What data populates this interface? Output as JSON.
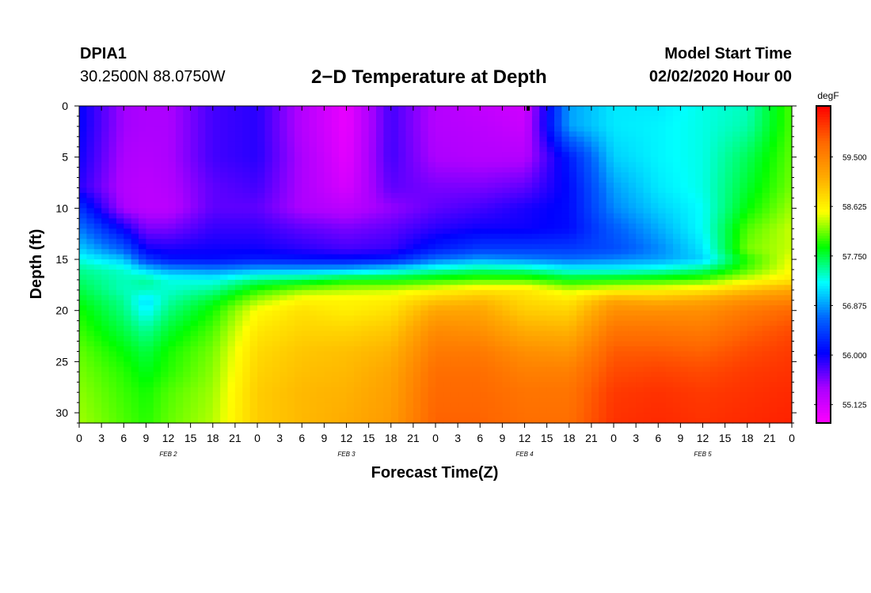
{
  "header": {
    "station": "DPIA1",
    "coords": "30.2500N 88.0750W",
    "title": "2−D Temperature at Depth",
    "start_title": "Model Start Time",
    "start_time": "02/02/2020 Hour 00"
  },
  "chart_data": {
    "type": "heatmap",
    "title": "2−D Temperature at Depth",
    "xlabel": "Forecast Time(Z)",
    "ylabel": "Depth (ft)",
    "x_hours_range": [
      0,
      96
    ],
    "ylim": [
      0,
      31
    ],
    "x_tick_labels": [
      "0",
      "3",
      "6",
      "9",
      "12",
      "15",
      "18",
      "21",
      "0",
      "3",
      "6",
      "9",
      "12",
      "15",
      "18",
      "21",
      "0",
      "3",
      "6",
      "9",
      "12",
      "15",
      "18",
      "21",
      "0",
      "3",
      "6",
      "9",
      "12",
      "15",
      "18",
      "21",
      "0"
    ],
    "y_ticks": [
      0,
      5,
      10,
      15,
      20,
      25,
      30
    ],
    "date_labels": [
      {
        "label": "FEB 2",
        "hour": 12
      },
      {
        "label": "FEB 3",
        "hour": 36
      },
      {
        "label": "FEB 4",
        "hour": 60
      },
      {
        "label": "FEB 5",
        "hour": 84
      }
    ],
    "colorbar": {
      "units": "degF",
      "range": [
        54.8,
        60.4
      ],
      "ticks": [
        55.125,
        56.0,
        56.875,
        57.75,
        58.625,
        59.5
      ],
      "tick_labels": [
        "55.125",
        "56.000",
        "56.875",
        "57.750",
        "58.625",
        "59.500"
      ],
      "colors": [
        "#ff00ff",
        "#aa00ff",
        "#0000ff",
        "#0066ff",
        "#00ffff",
        "#00ff00",
        "#ffff00",
        "#ffaa00",
        "#ff6600",
        "#ff0000"
      ]
    },
    "grid_depths_ft": [
      0,
      2,
      5,
      8,
      10,
      12,
      14,
      15,
      16,
      17,
      18,
      19,
      20,
      22,
      24,
      26,
      28,
      31
    ],
    "grid_hours": [
      0,
      6,
      9,
      12,
      18,
      24,
      30,
      36,
      42,
      48,
      54,
      60,
      66,
      72,
      78,
      84,
      90,
      96
    ],
    "temperature_degF": [
      [
        56.05,
        55.45,
        55.4,
        55.4,
        55.8,
        55.9,
        55.35,
        54.95,
        55.8,
        55.35,
        55.25,
        55.15,
        56.9,
        57.2,
        57.2,
        57.35,
        57.45,
        58.1
      ],
      [
        56.05,
        55.45,
        55.4,
        55.4,
        55.8,
        55.9,
        55.35,
        54.95,
        55.8,
        55.35,
        55.3,
        55.2,
        56.9,
        57.2,
        57.25,
        57.35,
        57.5,
        58.1
      ],
      [
        56.0,
        55.4,
        55.35,
        55.4,
        55.8,
        55.9,
        55.4,
        55.0,
        55.8,
        55.4,
        55.35,
        55.35,
        56.2,
        57.1,
        57.25,
        57.35,
        57.7,
        58.15
      ],
      [
        55.9,
        55.35,
        55.3,
        55.35,
        55.7,
        55.8,
        55.4,
        55.1,
        55.7,
        55.6,
        55.6,
        55.7,
        56.1,
        56.9,
        57.2,
        57.35,
        57.8,
        58.2
      ],
      [
        56.35,
        55.4,
        55.3,
        55.3,
        55.7,
        55.7,
        55.4,
        55.3,
        55.5,
        55.7,
        55.8,
        55.95,
        56.1,
        56.8,
        57.1,
        57.3,
        57.9,
        58.3
      ],
      [
        56.75,
        56.0,
        55.6,
        55.6,
        55.85,
        55.85,
        55.7,
        55.6,
        55.7,
        55.9,
        56.0,
        56.0,
        56.1,
        56.6,
        56.95,
        57.3,
        58.1,
        58.4
      ],
      [
        57.1,
        56.6,
        56.0,
        55.95,
        56.0,
        56.0,
        55.9,
        55.8,
        55.85,
        56.2,
        56.4,
        56.4,
        56.4,
        56.5,
        56.8,
        57.2,
        58.2,
        58.4
      ],
      [
        57.35,
        57.05,
        56.4,
        56.15,
        56.1,
        56.2,
        56.15,
        56.1,
        56.2,
        56.7,
        56.9,
        56.8,
        56.7,
        56.8,
        56.9,
        57.1,
        58.0,
        58.5
      ],
      [
        57.55,
        57.4,
        57.1,
        56.9,
        56.8,
        56.95,
        56.95,
        57.0,
        57.2,
        57.45,
        57.6,
        57.55,
        57.3,
        57.3,
        57.4,
        57.6,
        58.1,
        58.55
      ],
      [
        57.65,
        57.45,
        57.55,
        57.35,
        57.3,
        57.6,
        57.7,
        57.9,
        57.9,
        58.0,
        58.1,
        58.1,
        57.9,
        57.95,
        58.0,
        58.1,
        58.45,
        58.7
      ],
      [
        57.75,
        57.45,
        57.45,
        57.4,
        57.55,
        58.0,
        58.25,
        58.35,
        58.4,
        58.55,
        58.7,
        58.7,
        58.4,
        58.55,
        58.6,
        58.7,
        59.0,
        59.2
      ],
      [
        57.85,
        57.55,
        57.15,
        57.5,
        57.8,
        58.3,
        58.6,
        58.6,
        58.65,
        58.95,
        59.05,
        58.8,
        58.7,
        59.2,
        59.1,
        59.2,
        59.4,
        59.5
      ],
      [
        57.95,
        57.6,
        57.25,
        57.6,
        57.95,
        58.55,
        58.75,
        58.65,
        58.75,
        59.2,
        59.2,
        58.9,
        58.85,
        59.4,
        59.4,
        59.4,
        59.6,
        59.75
      ],
      [
        58.05,
        57.75,
        57.55,
        57.8,
        58.1,
        58.7,
        58.85,
        58.85,
        58.95,
        59.45,
        59.4,
        59.15,
        59.1,
        59.65,
        59.65,
        59.6,
        59.8,
        59.95
      ],
      [
        58.15,
        57.9,
        57.75,
        57.95,
        58.2,
        58.8,
        58.95,
        59.0,
        59.1,
        59.6,
        59.6,
        59.4,
        59.35,
        59.85,
        59.85,
        59.8,
        59.95,
        60.05
      ],
      [
        58.2,
        58.0,
        57.85,
        58.0,
        58.25,
        58.85,
        59.0,
        59.05,
        59.2,
        59.7,
        59.7,
        59.55,
        59.55,
        59.95,
        60.0,
        59.95,
        60.05,
        60.1
      ],
      [
        58.25,
        58.05,
        57.95,
        58.1,
        58.3,
        58.9,
        59.05,
        59.1,
        59.25,
        59.75,
        59.75,
        59.65,
        59.65,
        60.05,
        60.1,
        60.05,
        60.1,
        60.15
      ],
      [
        58.3,
        58.1,
        58.0,
        58.15,
        58.35,
        58.9,
        59.05,
        59.15,
        59.3,
        59.8,
        59.8,
        59.7,
        59.7,
        60.1,
        60.15,
        60.1,
        60.15,
        60.2
      ]
    ]
  }
}
